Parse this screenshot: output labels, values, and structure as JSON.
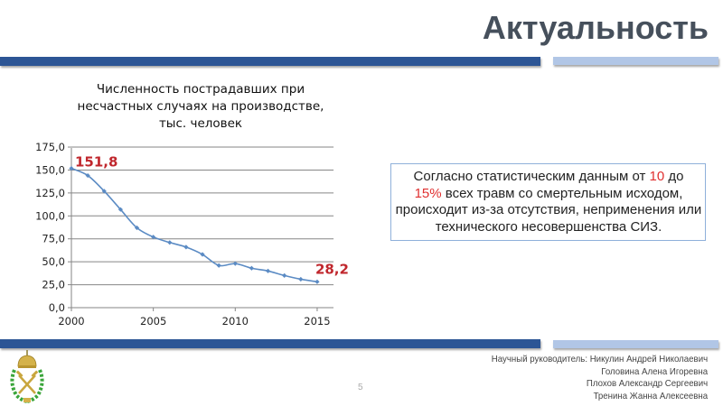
{
  "slide": {
    "title": "Актуальность",
    "page_number": "5"
  },
  "colors": {
    "bar_dark": "#2c5595",
    "bar_light": "#b1c6e6",
    "line": "#5b8bc4",
    "highlight_red": "#c0272d",
    "info_red": "#e03030",
    "box_border": "#8fb0da"
  },
  "chart": {
    "title_lines": [
      "Численность пострадавших при",
      "несчастных случаях на производстве,",
      "тыс. человек"
    ]
  },
  "chart_data": {
    "type": "line",
    "title": "Численность пострадавших при несчастных случаях на производстве, тыс. человек",
    "xlabel": "",
    "ylabel": "",
    "x": [
      2000,
      2001,
      2002,
      2003,
      2004,
      2005,
      2006,
      2007,
      2008,
      2009,
      2010,
      2011,
      2012,
      2013,
      2014,
      2015
    ],
    "values": [
      151.8,
      144,
      127,
      107,
      87,
      77,
      71,
      66,
      58,
      46,
      48,
      43,
      40,
      35,
      31,
      28.2
    ],
    "x_ticks": [
      "2000",
      "2005",
      "2010",
      "2015"
    ],
    "y_ticks": [
      "0,0",
      "25,0",
      "50,0",
      "75,0",
      "100,0",
      "125,0",
      "150,0",
      "175,0"
    ],
    "ylim": [
      0,
      175
    ],
    "xlim": [
      2000,
      2016
    ],
    "grid": "horizontal",
    "legend": "none",
    "annotations": [
      {
        "x": 2000,
        "label": "151,8"
      },
      {
        "x": 2015,
        "label": "28,2"
      }
    ]
  },
  "info": {
    "part1": "Согласно статистическим данным от ",
    "highlight1": "10",
    "part2": " до ",
    "highlight2": "15%",
    "part3": " всех травм со смертельным исходом, происходит из-за отсутствия, неприменения или технического несовершенства СИЗ."
  },
  "footer": {
    "lines": [
      "Научный руководитель: Никулин Андрей Николаевич",
      "Головина Алена Игоревна",
      "Плохов Александр Сергеевич",
      "Тренина Жанна Алексеевна"
    ]
  }
}
